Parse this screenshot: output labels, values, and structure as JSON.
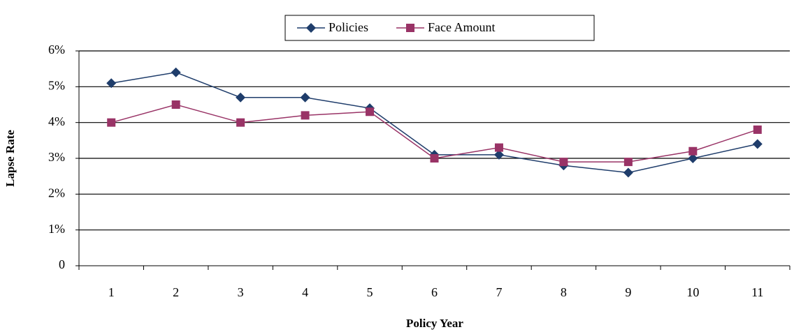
{
  "chart_data": {
    "type": "line",
    "x_label": "Policy Year",
    "y_label": "Lapse Rate",
    "categories": [
      "1",
      "2",
      "3",
      "4",
      "5",
      "6",
      "7",
      "8",
      "9",
      "10",
      "11"
    ],
    "series": [
      {
        "name": "Policies",
        "color": "#1f3d6b",
        "marker": "diamond",
        "values": [
          5.1,
          5.4,
          4.7,
          4.7,
          4.4,
          3.1,
          3.1,
          2.8,
          2.6,
          3.0,
          3.4
        ]
      },
      {
        "name": "Face Amount",
        "color": "#993366",
        "marker": "square",
        "values": [
          4.0,
          4.5,
          4.0,
          4.2,
          4.3,
          3.0,
          3.3,
          2.9,
          2.9,
          3.2,
          3.8
        ]
      }
    ],
    "ylim": [
      0,
      6
    ],
    "yticks": [
      0,
      {
        "value": 1,
        "label": "1%"
      },
      {
        "value": 2,
        "label": "2%"
      },
      {
        "value": 3,
        "label": "3%"
      },
      {
        "value": 4,
        "label": "4%"
      },
      {
        "value": 5,
        "label": "5%"
      },
      {
        "value": 6,
        "label": "6%"
      }
    ],
    "grid": true,
    "legend": "top"
  }
}
